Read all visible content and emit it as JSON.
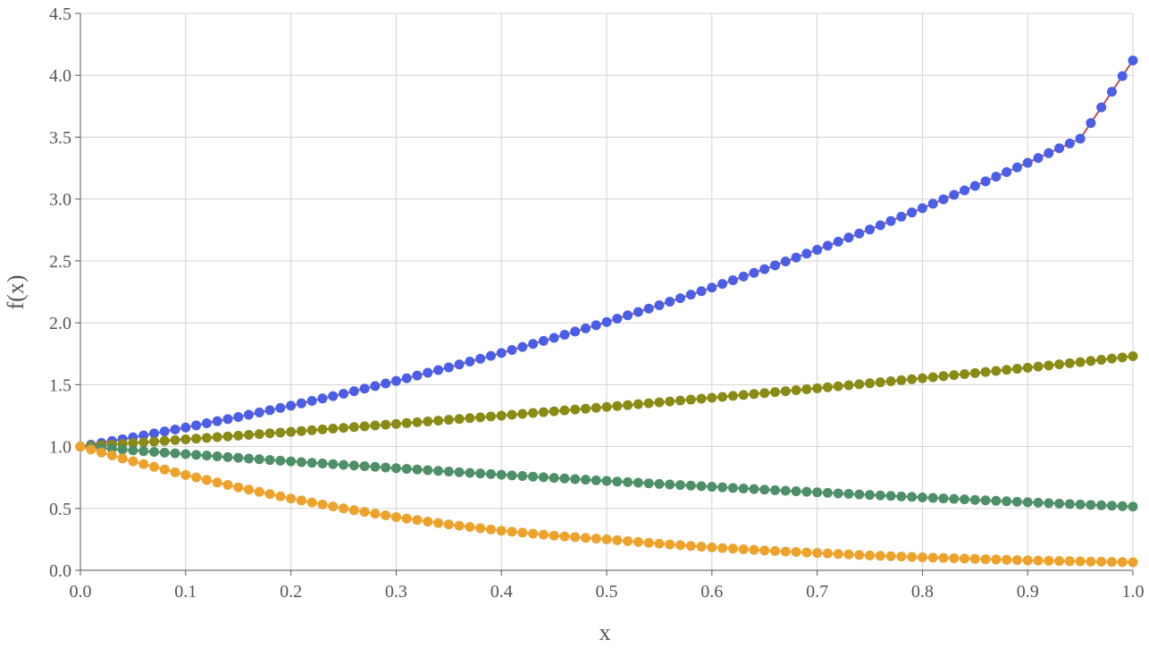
{
  "chart_data": {
    "type": "scatter",
    "title": "",
    "xlabel": "x",
    "ylabel": "f(x)",
    "xlim": [
      0,
      1
    ],
    "ylim": [
      0,
      4.5
    ],
    "x_ticks": [
      0,
      0.1,
      0.2,
      0.3,
      0.4,
      0.5,
      0.6,
      0.7,
      0.8,
      0.9,
      1.0
    ],
    "y_ticks": [
      0,
      0.5,
      1.0,
      1.5,
      2.0,
      2.5,
      3.0,
      3.5,
      4.0,
      4.5
    ],
    "x_tick_labels": [
      "0.0",
      "0.1",
      "0.2",
      "0.3",
      "0.4",
      "0.5",
      "0.6",
      "0.7",
      "0.8",
      "0.9",
      "1.0"
    ],
    "y_tick_labels": [
      "0.0",
      "0.5",
      "1.0",
      "1.5",
      "2.0",
      "2.5",
      "3.0",
      "3.5",
      "4.0",
      "4.5"
    ],
    "grid": true,
    "legend": "none",
    "x": [
      0,
      0.05,
      0.1,
      0.15,
      0.2,
      0.25,
      0.3,
      0.35,
      0.4,
      0.45,
      0.5,
      0.55,
      0.6,
      0.65,
      0.7,
      0.75,
      0.8,
      0.85,
      0.9,
      0.95,
      1.0
    ],
    "series": [
      {
        "color": "#4a5ee8",
        "line_color": "#c0504d",
        "values": [
          1.0,
          1.074,
          1.154,
          1.239,
          1.33,
          1.427,
          1.53,
          1.64,
          1.756,
          1.878,
          2.006,
          2.142,
          2.284,
          2.433,
          2.59,
          2.754,
          2.926,
          3.106,
          3.293,
          3.488,
          4.12
        ]
      },
      {
        "color": "#8a8a16",
        "values": [
          1.0,
          1.028,
          1.058,
          1.088,
          1.119,
          1.151,
          1.183,
          1.216,
          1.25,
          1.285,
          1.32,
          1.357,
          1.394,
          1.432,
          1.471,
          1.511,
          1.552,
          1.594,
          1.637,
          1.682,
          1.73
        ]
      },
      {
        "color": "#4e8f6a",
        "values": [
          1.0,
          0.969,
          0.939,
          0.909,
          0.88,
          0.852,
          0.825,
          0.798,
          0.772,
          0.747,
          0.722,
          0.698,
          0.675,
          0.652,
          0.63,
          0.609,
          0.589,
          0.569,
          0.55,
          0.532,
          0.515
        ]
      },
      {
        "color": "#eda22c",
        "values": [
          1.0,
          0.88,
          0.77,
          0.67,
          0.58,
          0.5,
          0.43,
          0.37,
          0.32,
          0.28,
          0.25,
          0.215,
          0.185,
          0.16,
          0.14,
          0.12,
          0.105,
          0.092,
          0.08,
          0.072,
          0.065
        ]
      }
    ]
  }
}
